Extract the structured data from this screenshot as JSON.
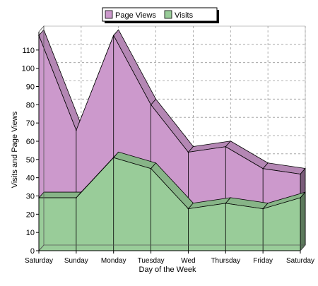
{
  "chart_data": {
    "type": "area",
    "stacked": false,
    "three_d": true,
    "title": "",
    "xlabel": "Day of the Week",
    "ylabel": "Visits and Page Views",
    "ylim": [
      0,
      120
    ],
    "yticks": [
      0,
      10,
      20,
      30,
      40,
      50,
      60,
      70,
      80,
      90,
      100,
      110
    ],
    "categories": [
      "Saturday",
      "Sunday",
      "Monday",
      "Tuesday",
      "Wed",
      "Thursday",
      "Friday",
      "Saturday"
    ],
    "grid": true,
    "grid_style": "dashed",
    "legend_position": "top",
    "series": [
      {
        "name": "Page Views",
        "color": "#cc99cc",
        "values": [
          118,
          66,
          118,
          80,
          54,
          57,
          45,
          42
        ]
      },
      {
        "name": "Visits",
        "color": "#99cc99",
        "values": [
          29,
          29,
          51,
          45,
          23,
          26,
          23,
          29
        ]
      }
    ]
  }
}
